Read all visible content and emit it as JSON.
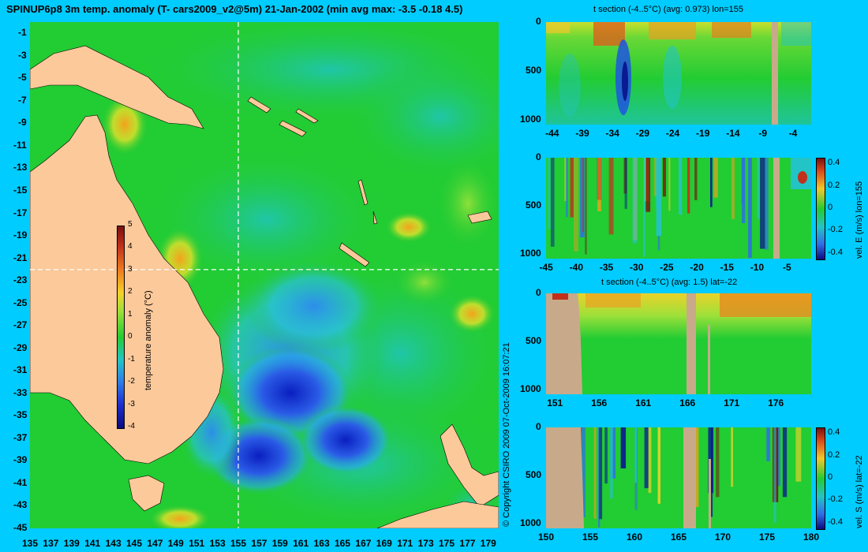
{
  "title": "SPINUP6p8 3m temp. anomaly (T- cars2009_v2@5m) 21-Jan-2002 (min avg max: -3.5 -0.18 4.5)",
  "copyright": "© Copyright CSIRO 2009   07-Oct-2009 16:07:21",
  "colors": {
    "background": "#00ccff",
    "land": "#fbc99a",
    "section_land": "#c8aa8a",
    "ocean_base": "#22cc33",
    "crosshair": "#ffffff"
  },
  "chart_data": [
    {
      "type": "heatmap",
      "name": "map",
      "title": "SPINUP6p8 3m temp. anomaly (T- cars2009_v2@5m) 21-Jan-2002 (min avg max: -3.5 -0.18 4.5)",
      "x_ticks": [
        "135",
        "137",
        "139",
        "141",
        "143",
        "145",
        "147",
        "149",
        "151",
        "153",
        "155",
        "157",
        "159",
        "161",
        "163",
        "165",
        "167",
        "169",
        "171",
        "173",
        "175",
        "177",
        "179"
      ],
      "y_ticks": [
        "-1",
        "-3",
        "-5",
        "-7",
        "-9",
        "-11",
        "-13",
        "-15",
        "-17",
        "-19",
        "-21",
        "-23",
        "-25",
        "-27",
        "-29",
        "-31",
        "-33",
        "-35",
        "-37",
        "-39",
        "-41",
        "-43",
        "-45"
      ],
      "xlim": [
        135,
        180
      ],
      "ylim": [
        -45,
        0
      ],
      "crosshair": {
        "lon": 155,
        "lat": -22
      },
      "colorbar": {
        "label": "temperature anomaly (°C)",
        "ticks": [
          "5",
          "4",
          "3",
          "2",
          "1",
          "0",
          "-1",
          "-2",
          "-3",
          "-4"
        ],
        "range": [
          -4,
          5
        ]
      }
    },
    {
      "type": "heatmap",
      "name": "t_section_lon",
      "title": "t section (-4..5°C) (avg: 0.973) lon=155",
      "x_ticks": [
        "-44",
        "-39",
        "-34",
        "-29",
        "-24",
        "-19",
        "-14",
        "-9",
        "-4"
      ],
      "y_ticks": [
        "0",
        "500",
        "1000"
      ],
      "xlim": [
        -45,
        -1
      ],
      "ylim": [
        1050,
        0
      ]
    },
    {
      "type": "heatmap",
      "name": "vel_e_section",
      "x_ticks": [
        "-45",
        "-40",
        "-35",
        "-30",
        "-25",
        "-20",
        "-15",
        "-10",
        "-5"
      ],
      "y_ticks": [
        "0",
        "500",
        "1000"
      ],
      "xlim": [
        -45,
        -1
      ],
      "ylim": [
        1050,
        0
      ],
      "colorbar": {
        "label": "vel. E (m/s) lon=155",
        "ticks": [
          "0.4",
          "0.2",
          "0",
          "-0.2",
          "-0.4"
        ],
        "range": [
          -0.45,
          0.45
        ]
      }
    },
    {
      "type": "heatmap",
      "name": "t_section_lat",
      "title": "t section (-4..5°C) (avg: 1.5) lat=-22",
      "x_ticks": [
        "151",
        "156",
        "161",
        "166",
        "171",
        "176"
      ],
      "y_ticks": [
        "0",
        "500",
        "1000"
      ],
      "xlim": [
        150,
        180
      ],
      "ylim": [
        1050,
        0
      ]
    },
    {
      "type": "heatmap",
      "name": "vel_s_section",
      "x_ticks": [
        "150",
        "155",
        "160",
        "165",
        "170",
        "175",
        "180"
      ],
      "y_ticks": [
        "0",
        "500",
        "1000"
      ],
      "xlim": [
        150,
        180
      ],
      "ylim": [
        1050,
        0
      ],
      "colorbar": {
        "label": "vel. S (m/s) lat=-22",
        "ticks": [
          "0.4",
          "0.2",
          "0",
          "-0.2",
          "-0.4"
        ],
        "range": [
          -0.45,
          0.45
        ]
      }
    }
  ]
}
